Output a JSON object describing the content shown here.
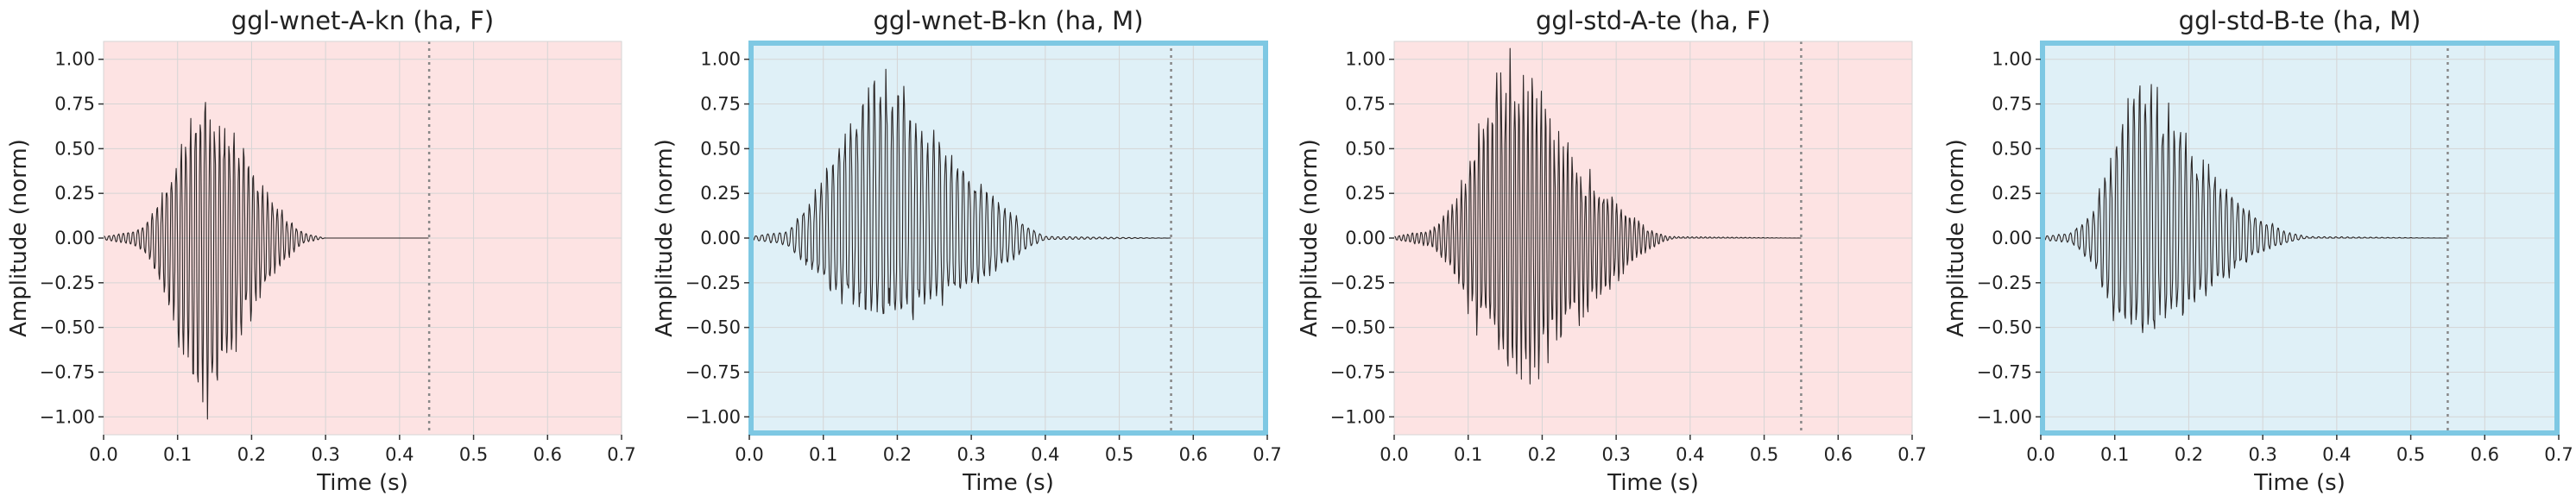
{
  "colors": {
    "female_bg": "#fde3e3",
    "male_bg": "#dff0f7",
    "male_border": "#7ec8e3",
    "grid": "#d5d5d5",
    "waveform": "#2b2626",
    "vline": "#888888"
  },
  "chart_data": [
    {
      "type": "line",
      "title": "ggl-wnet-A-kn (ha, F)",
      "xlabel": "Time (s)",
      "ylabel": "Amplitude (norm)",
      "xlim": [
        0.0,
        0.7
      ],
      "ylim": [
        -1.1,
        1.1
      ],
      "xticks": [
        0.0,
        0.1,
        0.2,
        0.3,
        0.4,
        0.5,
        0.6,
        0.7
      ],
      "yticks": [
        -1.0,
        -0.75,
        -0.5,
        -0.25,
        0.0,
        0.25,
        0.5,
        0.75,
        1.0
      ],
      "grid": true,
      "background": "female",
      "highlight_border": false,
      "end_marker_x": 0.44,
      "waveform": {
        "start": 0.0,
        "end": 0.44,
        "envelope": [
          [
            0.0,
            0.01
          ],
          [
            0.04,
            0.04
          ],
          [
            0.06,
            0.1
          ],
          [
            0.09,
            0.35
          ],
          [
            0.12,
            0.7
          ],
          [
            0.14,
            0.78
          ],
          [
            0.15,
            0.72
          ],
          [
            0.18,
            0.55
          ],
          [
            0.21,
            0.32
          ],
          [
            0.24,
            0.15
          ],
          [
            0.27,
            0.03
          ],
          [
            0.3,
            0.0
          ],
          [
            0.44,
            0.0
          ]
        ],
        "neg_envelope": [
          [
            0.0,
            0.01
          ],
          [
            0.04,
            0.04
          ],
          [
            0.06,
            0.1
          ],
          [
            0.09,
            0.45
          ],
          [
            0.12,
            0.88
          ],
          [
            0.135,
            1.0
          ],
          [
            0.15,
            0.92
          ],
          [
            0.18,
            0.62
          ],
          [
            0.21,
            0.36
          ],
          [
            0.24,
            0.15
          ],
          [
            0.27,
            0.03
          ],
          [
            0.3,
            0.0
          ],
          [
            0.44,
            0.0
          ]
        ],
        "density": [
          [
            0.0,
            0.25
          ],
          [
            0.06,
            0.5
          ],
          [
            0.14,
            0.8
          ],
          [
            0.24,
            0.6
          ],
          [
            0.3,
            0.2
          ],
          [
            0.44,
            0.0
          ]
        ],
        "period": 0.0065,
        "seed": 1
      }
    },
    {
      "type": "line",
      "title": "ggl-wnet-B-kn (ha, M)",
      "xlabel": "Time (s)",
      "ylabel": "Amplitude (norm)",
      "xlim": [
        0.0,
        0.7
      ],
      "ylim": [
        -1.1,
        1.1
      ],
      "xticks": [
        0.0,
        0.1,
        0.2,
        0.3,
        0.4,
        0.5,
        0.6,
        0.7
      ],
      "yticks": [
        -1.0,
        -0.75,
        -0.5,
        -0.25,
        0.0,
        0.25,
        0.5,
        0.75,
        1.0
      ],
      "grid": true,
      "background": "male",
      "highlight_border": true,
      "end_marker_x": 0.57,
      "waveform": {
        "start": 0.0,
        "end": 0.57,
        "envelope": [
          [
            0.0,
            0.01
          ],
          [
            0.05,
            0.04
          ],
          [
            0.08,
            0.2
          ],
          [
            0.12,
            0.55
          ],
          [
            0.16,
            0.92
          ],
          [
            0.18,
            1.0
          ],
          [
            0.21,
            0.85
          ],
          [
            0.25,
            0.62
          ],
          [
            0.3,
            0.38
          ],
          [
            0.34,
            0.2
          ],
          [
            0.38,
            0.06
          ],
          [
            0.4,
            0.01
          ],
          [
            0.57,
            0.0
          ]
        ],
        "neg_envelope": [
          [
            0.0,
            0.01
          ],
          [
            0.05,
            0.04
          ],
          [
            0.08,
            0.18
          ],
          [
            0.12,
            0.35
          ],
          [
            0.16,
            0.42
          ],
          [
            0.2,
            0.45
          ],
          [
            0.24,
            0.4
          ],
          [
            0.3,
            0.3
          ],
          [
            0.34,
            0.18
          ],
          [
            0.38,
            0.05
          ],
          [
            0.4,
            0.01
          ],
          [
            0.57,
            0.0
          ]
        ],
        "density": [
          [
            0.0,
            0.2
          ],
          [
            0.08,
            0.35
          ],
          [
            0.18,
            0.45
          ],
          [
            0.3,
            0.3
          ],
          [
            0.4,
            0.1
          ],
          [
            0.57,
            0.0
          ]
        ],
        "period": 0.008,
        "seed": 2
      }
    },
    {
      "type": "line",
      "title": "ggl-std-A-te (ha, F)",
      "xlabel": "Time (s)",
      "ylabel": "Amplitude (norm)",
      "xlim": [
        0.0,
        0.7
      ],
      "ylim": [
        -1.1,
        1.1
      ],
      "xticks": [
        0.0,
        0.1,
        0.2,
        0.3,
        0.4,
        0.5,
        0.6,
        0.7
      ],
      "yticks": [
        -1.0,
        -0.75,
        -0.5,
        -0.25,
        0.0,
        0.25,
        0.5,
        0.75,
        1.0
      ],
      "grid": true,
      "background": "female",
      "highlight_border": false,
      "end_marker_x": 0.55,
      "waveform": {
        "start": 0.0,
        "end": 0.55,
        "envelope": [
          [
            0.0,
            0.01
          ],
          [
            0.05,
            0.05
          ],
          [
            0.08,
            0.2
          ],
          [
            0.11,
            0.6
          ],
          [
            0.14,
            0.98
          ],
          [
            0.16,
            1.0
          ],
          [
            0.19,
            0.85
          ],
          [
            0.22,
            0.6
          ],
          [
            0.26,
            0.38
          ],
          [
            0.3,
            0.2
          ],
          [
            0.34,
            0.06
          ],
          [
            0.37,
            0.01
          ],
          [
            0.55,
            0.0
          ]
        ],
        "neg_envelope": [
          [
            0.0,
            0.01
          ],
          [
            0.05,
            0.05
          ],
          [
            0.08,
            0.2
          ],
          [
            0.11,
            0.5
          ],
          [
            0.14,
            0.68
          ],
          [
            0.17,
            0.77
          ],
          [
            0.2,
            0.7
          ],
          [
            0.24,
            0.55
          ],
          [
            0.28,
            0.35
          ],
          [
            0.32,
            0.15
          ],
          [
            0.36,
            0.03
          ],
          [
            0.38,
            0.0
          ],
          [
            0.55,
            0.0
          ]
        ],
        "density": [
          [
            0.0,
            0.3
          ],
          [
            0.08,
            0.7
          ],
          [
            0.16,
            0.95
          ],
          [
            0.26,
            0.8
          ],
          [
            0.34,
            0.4
          ],
          [
            0.55,
            0.0
          ]
        ],
        "period": 0.006,
        "seed": 3
      }
    },
    {
      "type": "line",
      "title": "ggl-std-B-te (ha, M)",
      "xlabel": "Time (s)",
      "ylabel": "Amplitude (norm)",
      "xlim": [
        0.0,
        0.7
      ],
      "ylim": [
        -1.1,
        1.1
      ],
      "xticks": [
        0.0,
        0.1,
        0.2,
        0.3,
        0.4,
        0.5,
        0.6,
        0.7
      ],
      "yticks": [
        -1.0,
        -0.75,
        -0.5,
        -0.25,
        0.0,
        0.25,
        0.5,
        0.75,
        1.0
      ],
      "grid": true,
      "background": "male",
      "highlight_border": true,
      "end_marker_x": 0.55,
      "waveform": {
        "start": 0.0,
        "end": 0.55,
        "envelope": [
          [
            0.0,
            0.01
          ],
          [
            0.04,
            0.03
          ],
          [
            0.07,
            0.15
          ],
          [
            0.1,
            0.55
          ],
          [
            0.13,
            0.85
          ],
          [
            0.15,
            0.88
          ],
          [
            0.18,
            0.7
          ],
          [
            0.21,
            0.48
          ],
          [
            0.25,
            0.3
          ],
          [
            0.29,
            0.14
          ],
          [
            0.33,
            0.04
          ],
          [
            0.36,
            0.01
          ],
          [
            0.55,
            0.0
          ]
        ],
        "neg_envelope": [
          [
            0.0,
            0.01
          ],
          [
            0.04,
            0.03
          ],
          [
            0.07,
            0.15
          ],
          [
            0.1,
            0.48
          ],
          [
            0.13,
            0.56
          ],
          [
            0.15,
            0.55
          ],
          [
            0.18,
            0.45
          ],
          [
            0.22,
            0.32
          ],
          [
            0.26,
            0.2
          ],
          [
            0.3,
            0.08
          ],
          [
            0.34,
            0.02
          ],
          [
            0.36,
            0.0
          ],
          [
            0.55,
            0.0
          ]
        ],
        "density": [
          [
            0.0,
            0.2
          ],
          [
            0.08,
            0.5
          ],
          [
            0.15,
            0.7
          ],
          [
            0.24,
            0.5
          ],
          [
            0.32,
            0.2
          ],
          [
            0.55,
            0.0
          ]
        ],
        "period": 0.0078,
        "seed": 4
      }
    }
  ]
}
